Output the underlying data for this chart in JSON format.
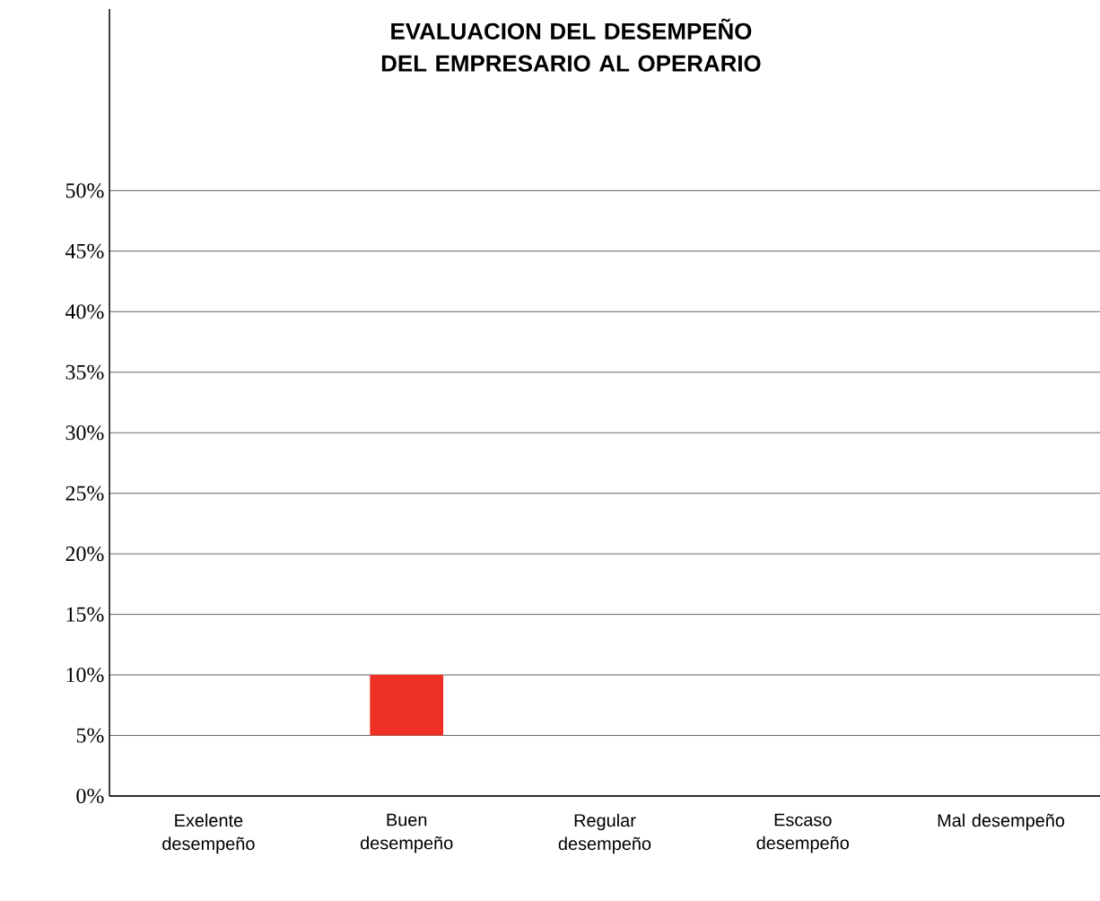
{
  "chart_data": {
    "type": "bar",
    "title": "EVALUACION DEL DESEMPEÑO DEL EMPRESARIO AL OPERARIO",
    "categories": [
      "Exelente desempeño",
      "Buen desempeño",
      "Regular desempeño",
      "Escaso desempeño",
      "Mal desempeño"
    ],
    "values": [
      null,
      5,
      null,
      null,
      null
    ],
    "base": [
      null,
      5,
      null,
      null,
      null
    ],
    "color": "#ee3124",
    "ylim": [
      0,
      65
    ],
    "yticks": [
      {
        "value": 0,
        "label": "0%"
      },
      {
        "value": 5,
        "label": "5%"
      },
      {
        "value": 10,
        "label": "10%"
      },
      {
        "value": 15,
        "label": "15%"
      },
      {
        "value": 20,
        "label": "20%"
      },
      {
        "value": 25,
        "label": "25%"
      },
      {
        "value": 30,
        "label": "30%"
      },
      {
        "value": 35,
        "label": "35%"
      },
      {
        "value": 40,
        "label": "40%"
      },
      {
        "value": 45,
        "label": "45%"
      },
      {
        "value": 50,
        "label": "50%"
      }
    ],
    "grid": "y"
  }
}
